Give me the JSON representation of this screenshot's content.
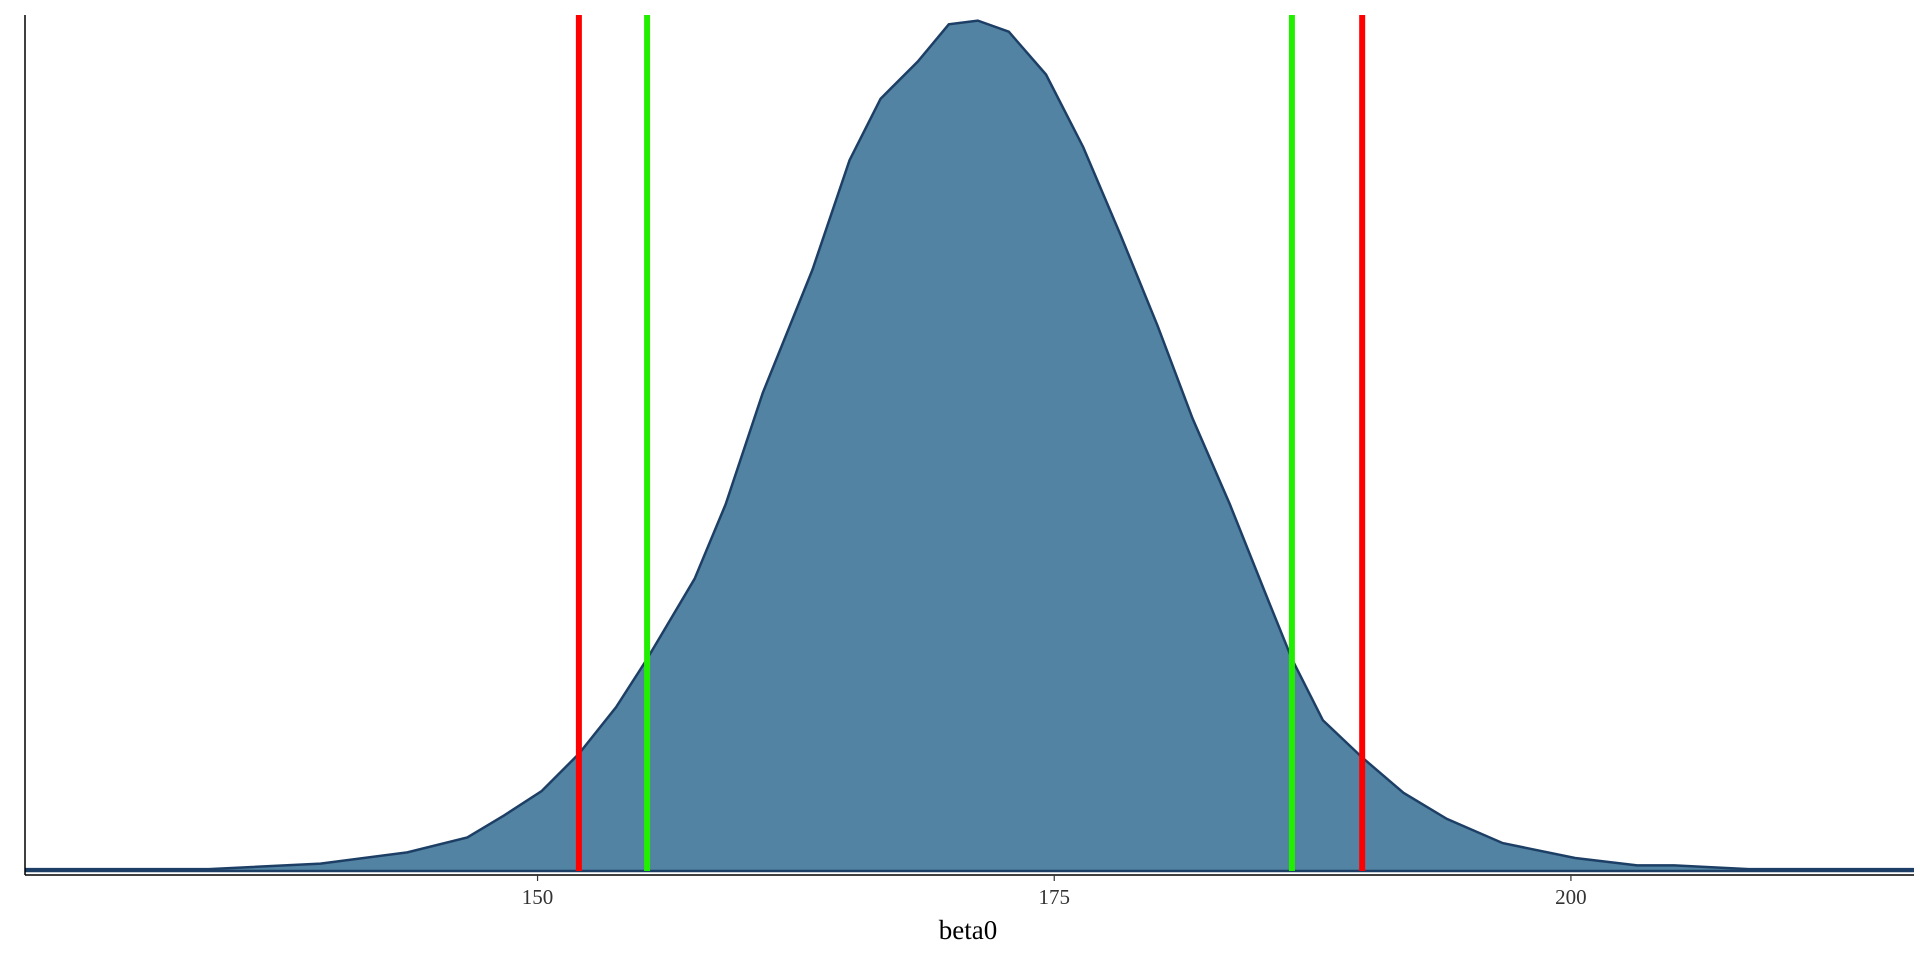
{
  "chart_data": {
    "type": "density",
    "x_label": "beta0",
    "x": [
      125.2,
      134.1,
      139.5,
      143.7,
      146.6,
      148.4,
      150.2,
      152.0,
      153.8,
      155.3,
      157.6,
      159.1,
      160.9,
      163.3,
      165.1,
      166.6,
      168.4,
      169.9,
      171.3,
      172.8,
      174.6,
      176.4,
      178.2,
      180.0,
      181.7,
      183.5,
      185.3,
      186.5,
      188.0,
      189.9,
      191.9,
      194.0,
      196.7,
      200.2,
      203.2,
      205.0,
      208.6,
      216.6
    ],
    "values": [
      0.0001,
      0.0001,
      0.0004,
      0.001,
      0.0018,
      0.003,
      0.0043,
      0.0063,
      0.0088,
      0.0114,
      0.0157,
      0.0197,
      0.0257,
      0.0323,
      0.0382,
      0.0415,
      0.0435,
      0.0455,
      0.0457,
      0.0451,
      0.0428,
      0.0389,
      0.0342,
      0.0293,
      0.0243,
      0.0197,
      0.0147,
      0.0114,
      0.0081,
      0.0061,
      0.0042,
      0.0028,
      0.0015,
      0.0007,
      0.0003,
      0.0003,
      0.0001,
      0.0001
    ],
    "fill": "#5283a2",
    "line_color": "#1d3f66",
    "vlines": [
      {
        "value": 152.0,
        "color": "#ff0000"
      },
      {
        "value": 155.3,
        "color": "#22ee00"
      },
      {
        "value": 186.5,
        "color": "#22ee00"
      },
      {
        "value": 189.9,
        "color": "#ff0000"
      }
    ],
    "xlim": [
      125.2,
      216.6
    ],
    "xticks": [
      150,
      175,
      200
    ],
    "ylim": [
      0,
      0.046
    ]
  }
}
